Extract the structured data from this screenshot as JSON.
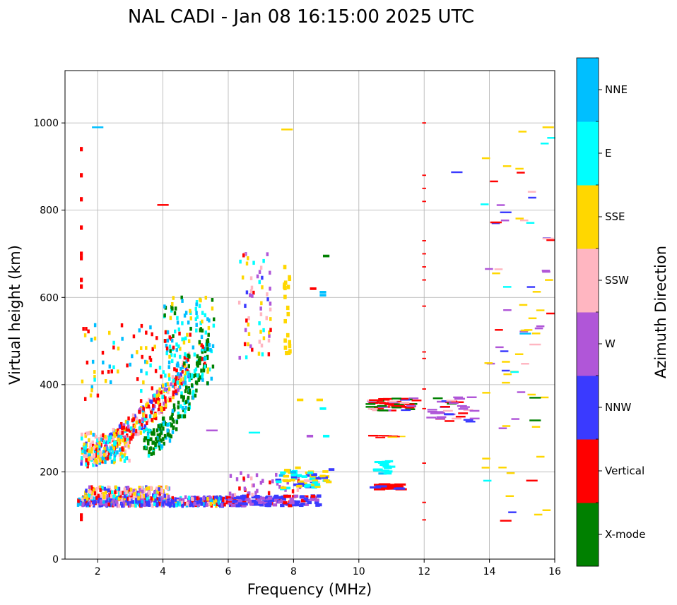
{
  "chart_data": {
    "type": "scatter",
    "title": "NAL CADI - Jan 08 16:15:00 2025 UTC",
    "xlabel": "Frequency (MHz)",
    "ylabel": "Virtual height (km)",
    "xlim": [
      1,
      16
    ],
    "ylim": [
      0,
      1120
    ],
    "xticks": [
      2,
      4,
      6,
      8,
      10,
      12,
      14,
      16
    ],
    "yticks": [
      0,
      200,
      400,
      600,
      800,
      1000
    ],
    "grid": true,
    "colorbar": {
      "label": "Azimuth Direction",
      "categories": [
        {
          "name": "X-mode",
          "color": "#008000"
        },
        {
          "name": "Vertical",
          "color": "#ff0000"
        },
        {
          "name": "NNW",
          "color": "#3a3aff"
        },
        {
          "name": "W",
          "color": "#b056d8"
        },
        {
          "name": "SSW",
          "color": "#ffb6c1"
        },
        {
          "name": "SSE",
          "color": "#ffd700"
        },
        {
          "name": "E",
          "color": "#00ffff"
        },
        {
          "name": "NNE",
          "color": "#00bfff"
        }
      ]
    },
    "series": [
      {
        "name": "E-layer trace",
        "x_range": [
          1.4,
          8.8
        ],
        "y_range": [
          115,
          165
        ],
        "dominant": "NNW"
      },
      {
        "name": "F-layer ordinary trace",
        "x_range": [
          1.4,
          5.0
        ],
        "y_range": [
          220,
          620
        ],
        "dominant": "Vertical"
      },
      {
        "name": "F-layer X-mode trace",
        "x_range": [
          3.4,
          5.5
        ],
        "y_range": [
          250,
          580
        ],
        "dominant": "X-mode"
      },
      {
        "name": "sporadic echoes 8-10 MHz",
        "x_range": [
          7.5,
          9.2
        ],
        "y_range": [
          160,
          210
        ],
        "dominant": "SSE"
      },
      {
        "name": "echoes 10-13 MHz",
        "x_range": [
          10.3,
          13.5
        ],
        "y_range": [
          160,
          370
        ],
        "dominant": "Vertical"
      },
      {
        "name": "sparse high echoes",
        "x_range": [
          12,
          16
        ],
        "y_range": [
          90,
          1000
        ],
        "dominant": "SSE"
      }
    ]
  }
}
